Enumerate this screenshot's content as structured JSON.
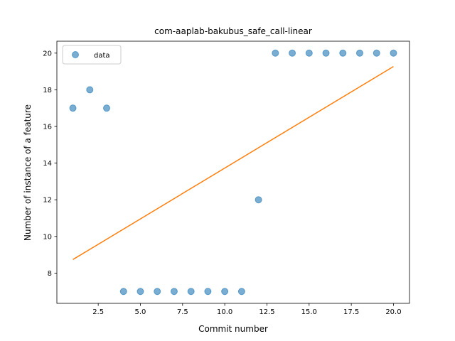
{
  "chart_data": {
    "type": "scatter",
    "title": "com-aaplab-bakubus_safe_call-linear",
    "xlabel": "Commit number",
    "ylabel": "Number of instance of a feature",
    "xlim": [
      0.05,
      20.95
    ],
    "ylim": [
      6.35,
      20.65
    ],
    "xticks": [
      2.5,
      5.0,
      7.5,
      10.0,
      12.5,
      15.0,
      17.5,
      20.0
    ],
    "xtick_labels": [
      "2.5",
      "5.0",
      "7.5",
      "10.0",
      "12.5",
      "15.0",
      "17.5",
      "20.0"
    ],
    "yticks": [
      8,
      10,
      12,
      14,
      16,
      18,
      20
    ],
    "ytick_labels": [
      "8",
      "10",
      "12",
      "14",
      "16",
      "18",
      "20"
    ],
    "grid": false,
    "legend_position": "top-left",
    "series": [
      {
        "name": "data",
        "kind": "scatter",
        "color": "#1f77b4",
        "x": [
          1,
          2,
          3,
          4,
          5,
          6,
          7,
          8,
          9,
          10,
          11,
          12,
          13,
          14,
          15,
          16,
          17,
          18,
          19,
          20
        ],
        "y": [
          17,
          18,
          17,
          7,
          7,
          7,
          7,
          7,
          7,
          7,
          7,
          12,
          20,
          20,
          20,
          20,
          20,
          20,
          20,
          20
        ]
      },
      {
        "kind": "line",
        "color": "#ff7f0e",
        "x": [
          1,
          20
        ],
        "y": [
          8.74,
          19.27
        ]
      }
    ]
  }
}
